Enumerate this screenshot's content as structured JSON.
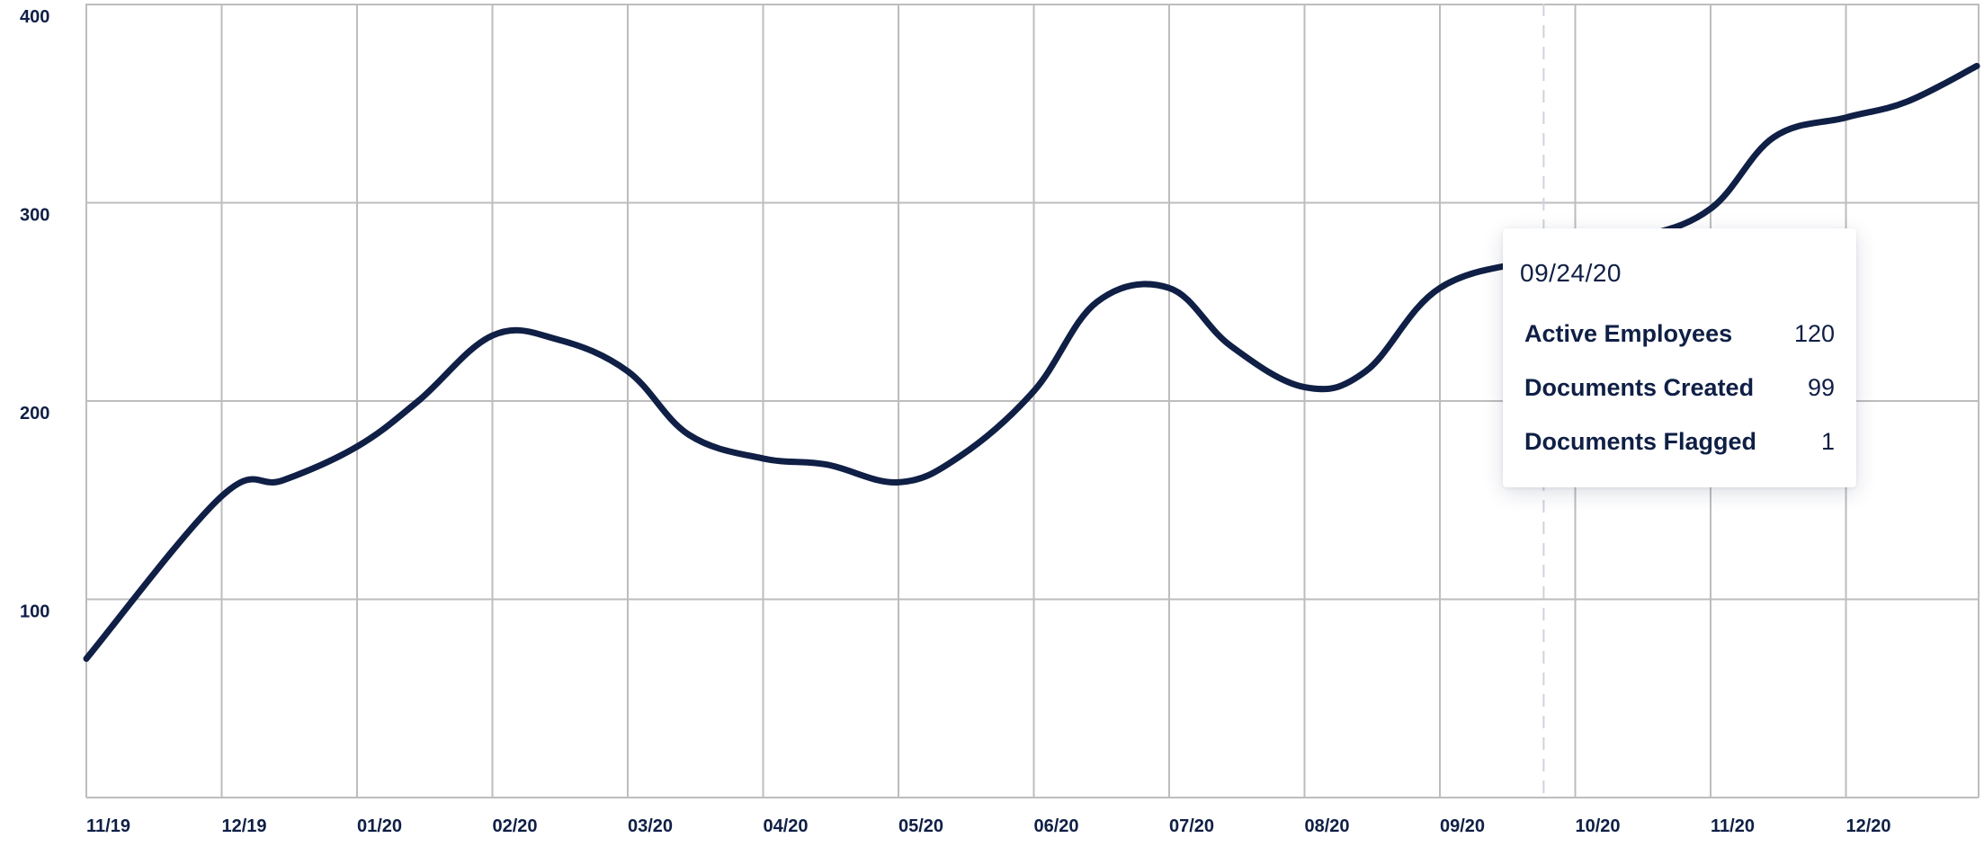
{
  "chart_data": {
    "type": "line",
    "x_tick_labels": [
      "11/19",
      "12/19",
      "01/20",
      "02/20",
      "03/20",
      "04/20",
      "05/20",
      "06/20",
      "07/20",
      "08/20",
      "09/20",
      "10/20",
      "11/20",
      "12/20"
    ],
    "y_tick_labels": [
      "400",
      "300",
      "200",
      "100"
    ],
    "ylim": [
      0,
      400
    ],
    "grid": true,
    "series": [
      {
        "color": "#0f1f45",
        "x": [
          "11/01/19",
          "12/01/19",
          "12/15/19",
          "01/01/20",
          "01/15/20",
          "02/01/20",
          "02/15/20",
          "03/01/20",
          "03/15/20",
          "04/01/20",
          "04/15/20",
          "05/01/20",
          "05/15/20",
          "06/01/20",
          "06/15/20",
          "07/01/20",
          "07/15/20",
          "08/01/20",
          "08/15/20",
          "09/01/20",
          "09/24/20",
          "10/15/20",
          "11/01/20",
          "11/15/20",
          "12/01/20",
          "12/15/20",
          "12/31/20"
        ],
        "y": [
          70,
          152,
          160,
          177,
          200,
          233,
          231,
          215,
          183,
          171,
          168,
          159,
          172,
          205,
          250,
          257,
          228,
          207,
          215,
          257,
          272,
          282,
          297,
          333,
          343,
          351,
          369
        ]
      }
    ],
    "tooltip": {
      "date": "09/24/20",
      "rows": [
        {
          "label": "Active Employees",
          "value": "120"
        },
        {
          "label": "Documents Created",
          "value": "99"
        },
        {
          "label": "Documents Flagged",
          "value": "1"
        }
      ]
    }
  }
}
